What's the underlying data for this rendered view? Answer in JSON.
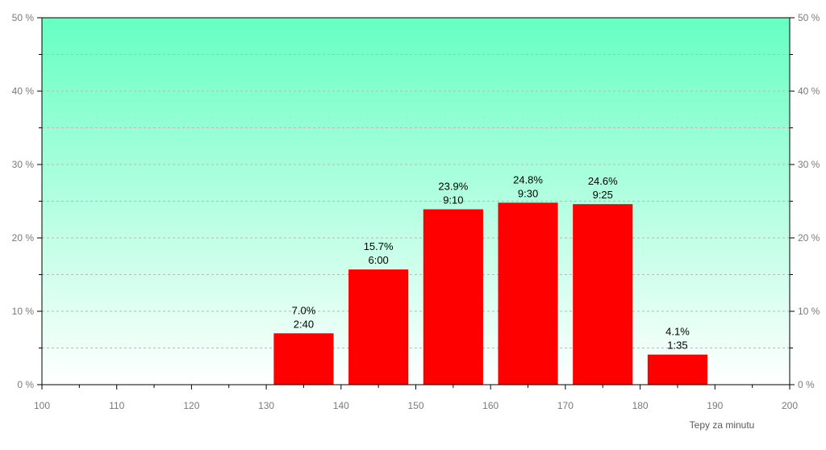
{
  "chart_data": {
    "type": "bar",
    "x_ticks": [
      100,
      110,
      120,
      130,
      140,
      150,
      160,
      170,
      180,
      190,
      200
    ],
    "y_ticks": [
      0,
      10,
      20,
      30,
      40,
      50
    ],
    "y_tick_labels": [
      "0 %",
      "10 %",
      "20 %",
      "30 %",
      "40 %",
      "50 %"
    ],
    "xlim": [
      100,
      200
    ],
    "ylim": [
      0,
      50
    ],
    "xlabel": "Tepy za minutu",
    "bars": [
      {
        "x_start": 130,
        "x_end": 140,
        "value": 7.0,
        "label_pct": "7.0%",
        "label_time": "2:40"
      },
      {
        "x_start": 140,
        "x_end": 150,
        "value": 15.7,
        "label_pct": "15.7%",
        "label_time": "6:00"
      },
      {
        "x_start": 150,
        "x_end": 160,
        "value": 23.9,
        "label_pct": "23.9%",
        "label_time": "9:10"
      },
      {
        "x_start": 160,
        "x_end": 170,
        "value": 24.8,
        "label_pct": "24.8%",
        "label_time": "9:30"
      },
      {
        "x_start": 170,
        "x_end": 180,
        "value": 24.6,
        "label_pct": "24.6%",
        "label_time": "9:25"
      },
      {
        "x_start": 180,
        "x_end": 190,
        "value": 4.1,
        "label_pct": "4.1%",
        "label_time": "1:35"
      }
    ],
    "bar_color": "#ff0000",
    "background_gradient": [
      "#66ffc2",
      "#ffffff"
    ],
    "grid": true,
    "right_axis_mirrored": true
  }
}
